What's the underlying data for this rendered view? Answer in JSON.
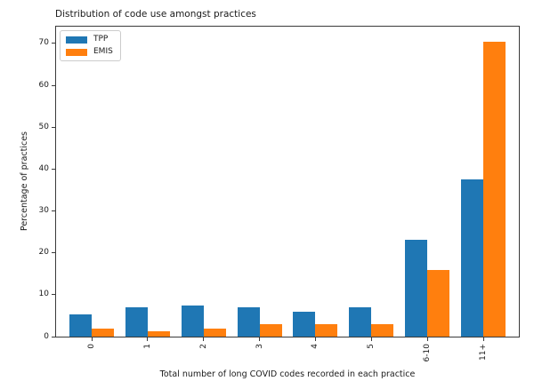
{
  "figure": {
    "background": "#ffffff",
    "text_color": "#1a1a1a",
    "spine_color": "#3a3a3a"
  },
  "chart_data": {
    "type": "bar",
    "title": "Distribution of code use amongst practices",
    "title_align": "left",
    "xlabel": "Total number of long COVID codes recorded in each practice",
    "ylabel": "Percentage of practices",
    "categories": [
      "0",
      "1",
      "2",
      "3",
      "4",
      "5",
      "6-10",
      "11+"
    ],
    "series": [
      {
        "name": "TPP",
        "color": "#1f77b4",
        "values": [
          5.4,
          6.9,
          7.4,
          6.9,
          6.0,
          7.1,
          23.2,
          37.5
        ]
      },
      {
        "name": "EMIS",
        "color": "#ff7f0e",
        "values": [
          2.0,
          1.3,
          2.0,
          2.9,
          2.9,
          3.0,
          15.9,
          70.5
        ]
      }
    ],
    "yticks": [
      0,
      10,
      20,
      30,
      40,
      50,
      60,
      70
    ],
    "ylim": [
      0,
      74
    ],
    "xtick_rotation": 90,
    "grid": false,
    "legend_position": "upper left",
    "legend_entries": [
      "TPP",
      "EMIS"
    ]
  }
}
